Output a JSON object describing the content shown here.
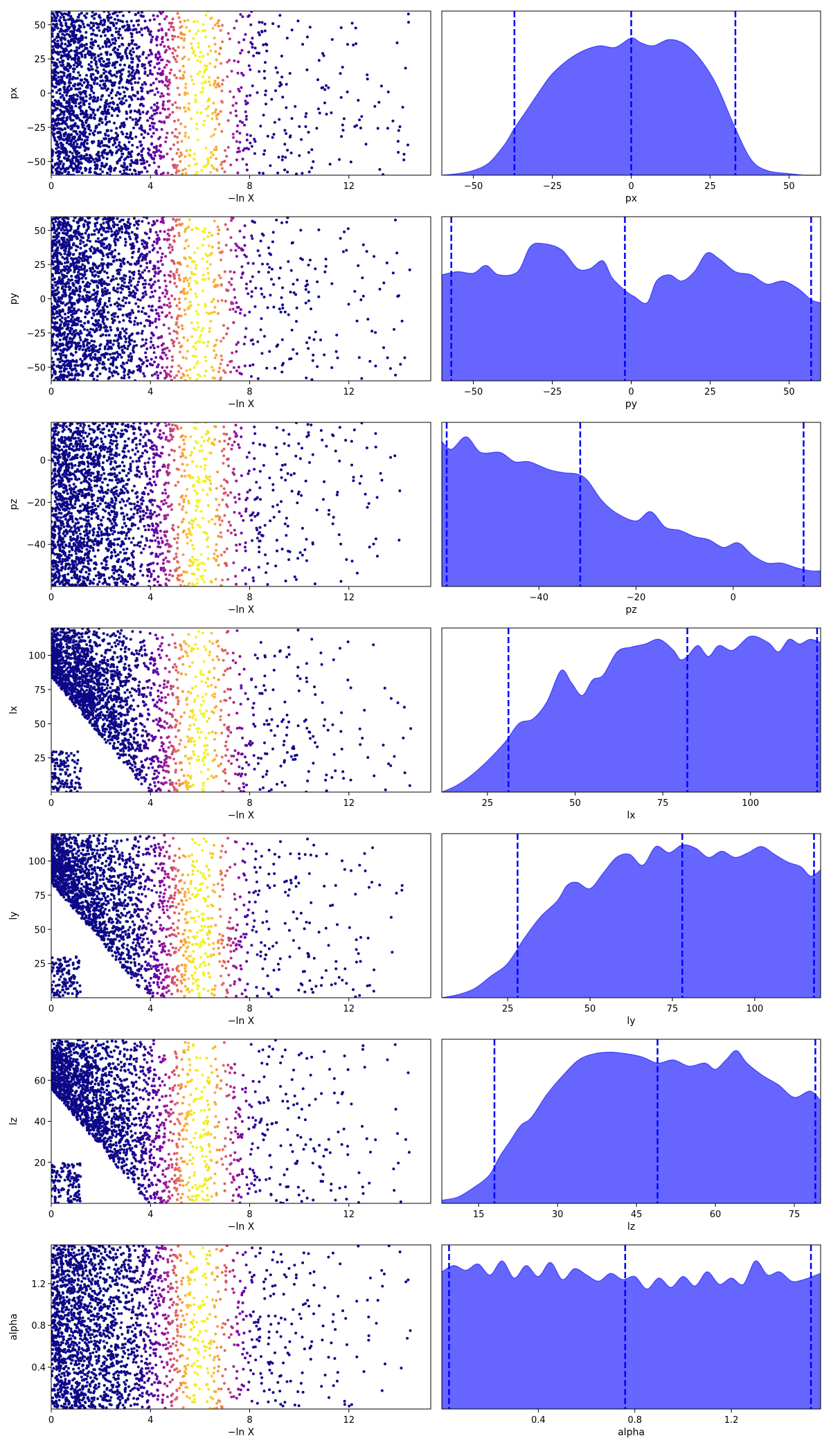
{
  "chart_data": [
    {
      "type": "scatter",
      "xlabel": "−ln X",
      "ylabel": "px",
      "xlim": [
        0,
        15.3
      ],
      "ylim": [
        -60,
        60
      ],
      "xticks": [
        0,
        4,
        8,
        12
      ],
      "yticks": [
        -50,
        -25,
        0,
        25,
        50
      ],
      "colormap": "plasma",
      "color_peak_x": 6.0
    },
    {
      "type": "area",
      "xlabel": "px",
      "xlim": [
        -60,
        60
      ],
      "xticks": [
        -50,
        -25,
        0,
        25,
        50
      ],
      "x": [
        -60,
        -55,
        -50,
        -45,
        -40,
        -37,
        -33,
        -28,
        -25,
        -20,
        -15,
        -10,
        -5,
        0,
        3,
        7,
        12,
        17,
        22,
        27,
        33,
        38,
        43,
        50,
        55,
        60
      ],
      "density": [
        0.0,
        0.01,
        0.03,
        0.08,
        0.2,
        0.3,
        0.42,
        0.57,
        0.65,
        0.74,
        0.8,
        0.83,
        0.82,
        0.88,
        0.85,
        0.83,
        0.87,
        0.84,
        0.74,
        0.58,
        0.3,
        0.1,
        0.03,
        0.01,
        0.0,
        0.0
      ],
      "quantile_lines": [
        -37,
        0,
        33
      ],
      "fill_color": "#6666ff",
      "line_color": "#0000ff"
    },
    {
      "type": "scatter",
      "xlabel": "−ln X",
      "ylabel": "py",
      "xlim": [
        0,
        15.3
      ],
      "ylim": [
        -60,
        60
      ],
      "xticks": [
        0,
        4,
        8,
        12
      ],
      "yticks": [
        -50,
        -25,
        0,
        25,
        50
      ],
      "colormap": "plasma",
      "color_peak_x": 6.0
    },
    {
      "type": "area",
      "xlabel": "py",
      "xlim": [
        -60,
        60
      ],
      "xticks": [
        -50,
        -25,
        0,
        25,
        50
      ],
      "x": [
        -60,
        -55,
        -50,
        -46,
        -42,
        -36,
        -32,
        -28,
        -22,
        -17,
        -13,
        -9,
        -6,
        -2,
        1,
        5,
        8,
        12,
        16,
        20,
        24,
        28,
        33,
        38,
        43,
        48,
        53,
        57,
        60
      ],
      "density": [
        0.68,
        0.7,
        0.69,
        0.74,
        0.68,
        0.7,
        0.86,
        0.88,
        0.84,
        0.72,
        0.72,
        0.77,
        0.66,
        0.58,
        0.54,
        0.5,
        0.64,
        0.68,
        0.64,
        0.7,
        0.82,
        0.78,
        0.7,
        0.68,
        0.62,
        0.64,
        0.59,
        0.52,
        0.5
      ],
      "quantile_lines": [
        -57,
        -2,
        57
      ],
      "fill_color": "#6666ff",
      "line_color": "#0000ff"
    },
    {
      "type": "scatter",
      "xlabel": "−ln X",
      "ylabel": "pz",
      "xlim": [
        0,
        15.3
      ],
      "ylim": [
        -60,
        18
      ],
      "xticks": [
        0,
        4,
        8,
        12
      ],
      "yticks": [
        -40,
        -20,
        0
      ],
      "colormap": "plasma",
      "color_peak_x": 6.0
    },
    {
      "type": "area",
      "xlabel": "pz",
      "xlim": [
        -60,
        18
      ],
      "xticks": [
        -40,
        -20,
        0
      ],
      "x": [
        -60,
        -58,
        -55,
        -52,
        -48,
        -45,
        -42,
        -38,
        -35,
        -32,
        -30,
        -27,
        -24,
        -20,
        -17,
        -14,
        -11,
        -8,
        -5,
        -2,
        1,
        4,
        7,
        10,
        13,
        16,
        18
      ],
      "density": [
        0.93,
        0.88,
        0.96,
        0.86,
        0.86,
        0.8,
        0.8,
        0.75,
        0.73,
        0.72,
        0.68,
        0.55,
        0.47,
        0.42,
        0.48,
        0.38,
        0.36,
        0.32,
        0.3,
        0.25,
        0.28,
        0.2,
        0.15,
        0.15,
        0.12,
        0.1,
        0.1
      ],
      "quantile_lines": [
        -59,
        -31.5,
        14.5
      ],
      "fill_color": "#6666ff",
      "line_color": "#0000ff"
    },
    {
      "type": "scatter",
      "xlabel": "−ln X",
      "ylabel": "lx",
      "xlim": [
        0,
        15.3
      ],
      "ylim": [
        0,
        120
      ],
      "xticks": [
        0,
        4,
        8,
        12
      ],
      "yticks": [
        25,
        50,
        75,
        100
      ],
      "colormap": "plasma",
      "color_peak_x": 6.0
    },
    {
      "type": "area",
      "xlabel": "lx",
      "xlim": [
        12,
        120
      ],
      "xticks": [
        25,
        50,
        75,
        100
      ],
      "x": [
        12,
        16,
        20,
        25,
        30,
        34,
        38,
        42,
        46,
        49,
        52,
        55,
        58,
        62,
        66,
        70,
        74,
        78,
        80,
        82,
        85,
        88,
        91,
        95,
        100,
        105,
        108,
        111,
        114,
        117,
        120
      ],
      "density": [
        0.0,
        0.04,
        0.1,
        0.2,
        0.32,
        0.44,
        0.47,
        0.58,
        0.78,
        0.7,
        0.62,
        0.72,
        0.75,
        0.9,
        0.93,
        0.95,
        0.98,
        0.91,
        0.85,
        0.87,
        0.94,
        0.87,
        0.94,
        0.91,
        1.0,
        0.96,
        0.9,
        0.98,
        0.95,
        0.98,
        0.96
      ],
      "quantile_lines": [
        31,
        82,
        119
      ],
      "fill_color": "#6666ff",
      "line_color": "#0000ff"
    },
    {
      "type": "scatter",
      "xlabel": "−ln X",
      "ylabel": "ly",
      "xlim": [
        0,
        15.3
      ],
      "ylim": [
        0,
        120
      ],
      "xticks": [
        0,
        4,
        8,
        12
      ],
      "yticks": [
        25,
        50,
        75,
        100
      ],
      "colormap": "plasma",
      "color_peak_x": 6.0
    },
    {
      "type": "area",
      "xlabel": "ly",
      "xlim": [
        5,
        120
      ],
      "xticks": [
        25,
        50,
        75,
        100
      ],
      "x": [
        5,
        10,
        15,
        20,
        25,
        30,
        35,
        40,
        43,
        46,
        50,
        54,
        58,
        62,
        66,
        70,
        74,
        78,
        82,
        86,
        90,
        94,
        98,
        102,
        106,
        110,
        114,
        117,
        120
      ],
      "density": [
        0.0,
        0.02,
        0.06,
        0.14,
        0.22,
        0.38,
        0.52,
        0.62,
        0.72,
        0.74,
        0.7,
        0.8,
        0.9,
        0.92,
        0.85,
        0.97,
        0.93,
        0.98,
        0.96,
        0.9,
        0.94,
        0.9,
        0.93,
        0.97,
        0.92,
        0.87,
        0.84,
        0.78,
        0.82
      ],
      "quantile_lines": [
        28,
        78,
        118
      ],
      "fill_color": "#6666ff",
      "line_color": "#0000ff"
    },
    {
      "type": "scatter",
      "xlabel": "−ln X",
      "ylabel": "lz",
      "xlim": [
        0,
        15.3
      ],
      "ylim": [
        0,
        80
      ],
      "xticks": [
        0,
        4,
        8,
        12
      ],
      "yticks": [
        20,
        40,
        60
      ],
      "colormap": "plasma",
      "color_peak_x": 6.0
    },
    {
      "type": "area",
      "xlabel": "lz",
      "xlim": [
        8,
        80
      ],
      "xticks": [
        15,
        30,
        45,
        60,
        75
      ],
      "x": [
        8,
        11,
        14,
        17,
        19,
        21,
        23,
        25,
        28,
        31,
        34,
        37,
        40,
        43,
        46,
        49,
        52,
        55,
        58,
        60,
        62,
        64,
        66,
        69,
        72,
        75,
        78,
        80
      ],
      "density": [
        0.02,
        0.04,
        0.1,
        0.18,
        0.3,
        0.4,
        0.5,
        0.55,
        0.7,
        0.82,
        0.92,
        0.96,
        0.97,
        0.96,
        0.94,
        0.9,
        0.92,
        0.88,
        0.9,
        0.86,
        0.92,
        0.98,
        0.9,
        0.82,
        0.76,
        0.68,
        0.72,
        0.66
      ],
      "quantile_lines": [
        18,
        49,
        79
      ],
      "fill_color": "#6666ff",
      "line_color": "#0000ff"
    },
    {
      "type": "scatter",
      "xlabel": "−ln X",
      "ylabel": "alpha",
      "xlim": [
        0,
        15.3
      ],
      "ylim": [
        0,
        1.57
      ],
      "xticks": [
        0,
        4,
        8,
        12
      ],
      "yticks": [
        0.4,
        0.8,
        1.2
      ],
      "colormap": "plasma",
      "color_peak_x": 6.0
    },
    {
      "type": "area",
      "xlabel": "alpha",
      "xlim": [
        0,
        1.57
      ],
      "xticks": [
        0.4,
        0.8,
        1.2
      ],
      "x": [
        0,
        0.05,
        0.1,
        0.15,
        0.2,
        0.25,
        0.3,
        0.35,
        0.4,
        0.45,
        0.5,
        0.55,
        0.6,
        0.65,
        0.7,
        0.75,
        0.8,
        0.85,
        0.9,
        0.95,
        1.0,
        1.05,
        1.1,
        1.15,
        1.2,
        1.25,
        1.3,
        1.35,
        1.4,
        1.45,
        1.5,
        1.57
      ],
      "density": [
        0.88,
        0.92,
        0.89,
        0.93,
        0.86,
        0.95,
        0.84,
        0.92,
        0.85,
        0.94,
        0.83,
        0.9,
        0.86,
        0.82,
        0.87,
        0.83,
        0.85,
        0.77,
        0.84,
        0.78,
        0.85,
        0.79,
        0.88,
        0.8,
        0.84,
        0.8,
        0.95,
        0.86,
        0.88,
        0.82,
        0.83,
        0.87
      ],
      "quantile_lines": [
        0.03,
        0.76,
        1.53
      ],
      "fill_color": "#6666ff",
      "line_color": "#0000ff"
    }
  ]
}
